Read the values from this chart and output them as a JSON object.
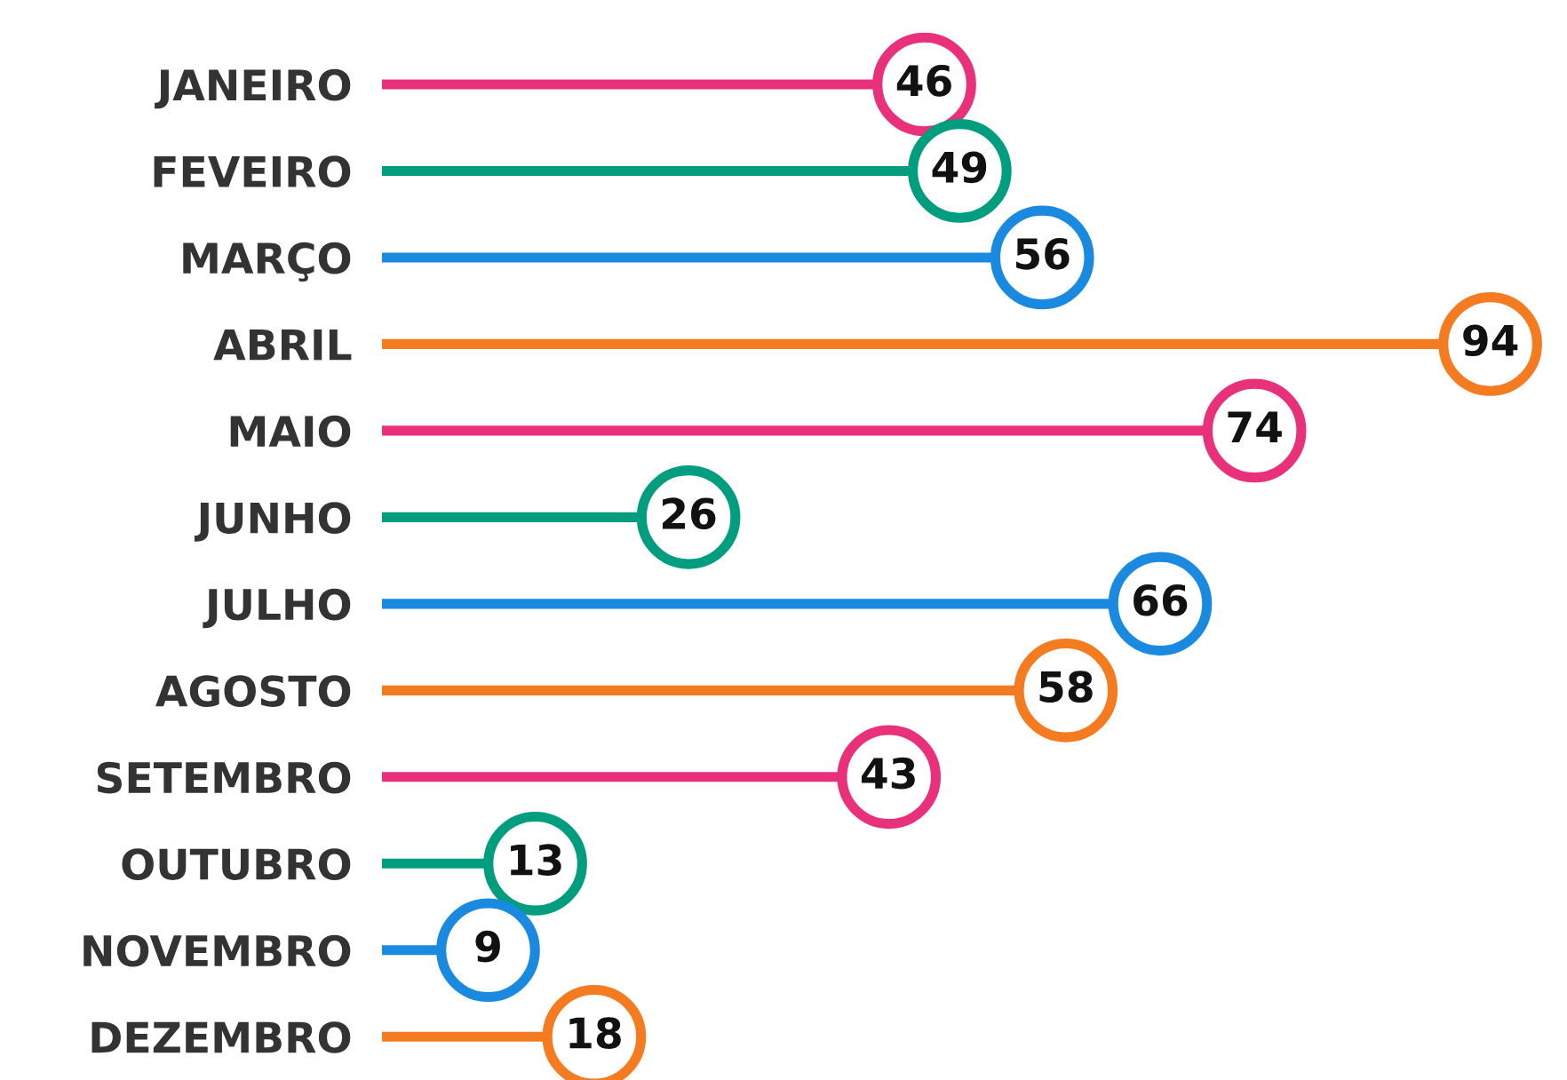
{
  "chart_data": {
    "type": "lollipop",
    "orientation": "horizontal",
    "data_labels": true,
    "grid": false,
    "legend": false,
    "tick_labels": "y",
    "categories": [
      "JANEIRO",
      "FEVEIRO",
      "MARÇO",
      "ABRIL",
      "MAIO",
      "JUNHO",
      "JULHO",
      "AGOSTO",
      "SETEMBRO",
      "OUTUBRO",
      "NOVEMBRO",
      "DEZEMBRO"
    ],
    "values": [
      46,
      49,
      56,
      94,
      74,
      26,
      66,
      58,
      43,
      13,
      9,
      18
    ],
    "colors": [
      "#e8317a",
      "#009e7e",
      "#1a8ae0",
      "#f47b20",
      "#e8317a",
      "#009e7e",
      "#1a8ae0",
      "#f47b20",
      "#e8317a",
      "#009e7e",
      "#1a8ae0",
      "#f47b20"
    ]
  }
}
